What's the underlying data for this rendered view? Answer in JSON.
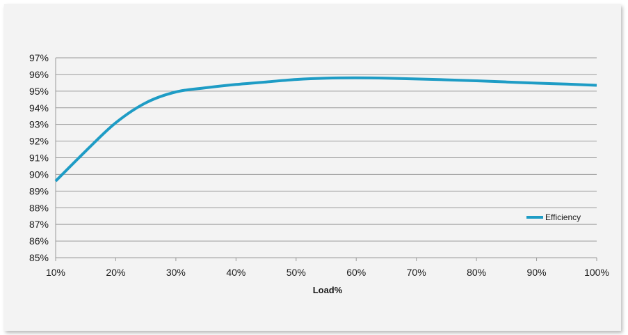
{
  "chart_data": {
    "type": "line",
    "title": "",
    "xlabel": "Load%",
    "ylabel": "",
    "x_ticks": [
      "10%",
      "20%",
      "30%",
      "40%",
      "50%",
      "60%",
      "70%",
      "80%",
      "90%",
      "100%"
    ],
    "y_ticks": [
      "85%",
      "86%",
      "87%",
      "88%",
      "89%",
      "90%",
      "91%",
      "92%",
      "93%",
      "94%",
      "95%",
      "96%",
      "97%"
    ],
    "xlim": [
      10,
      100
    ],
    "ylim": [
      85,
      97
    ],
    "grid": "horizontal",
    "legend_position": "right",
    "series": [
      {
        "name": "Efficiency",
        "color": "#1e9cc5",
        "x": [
          10,
          15,
          20,
          25,
          30,
          35,
          40,
          45,
          50,
          55,
          60,
          65,
          70,
          75,
          80,
          85,
          90,
          95,
          100
        ],
        "y": [
          89.6,
          91.4,
          93.1,
          94.3,
          94.95,
          95.2,
          95.4,
          95.55,
          95.7,
          95.78,
          95.8,
          95.78,
          95.73,
          95.68,
          95.62,
          95.55,
          95.48,
          95.42,
          95.35
        ]
      }
    ]
  }
}
